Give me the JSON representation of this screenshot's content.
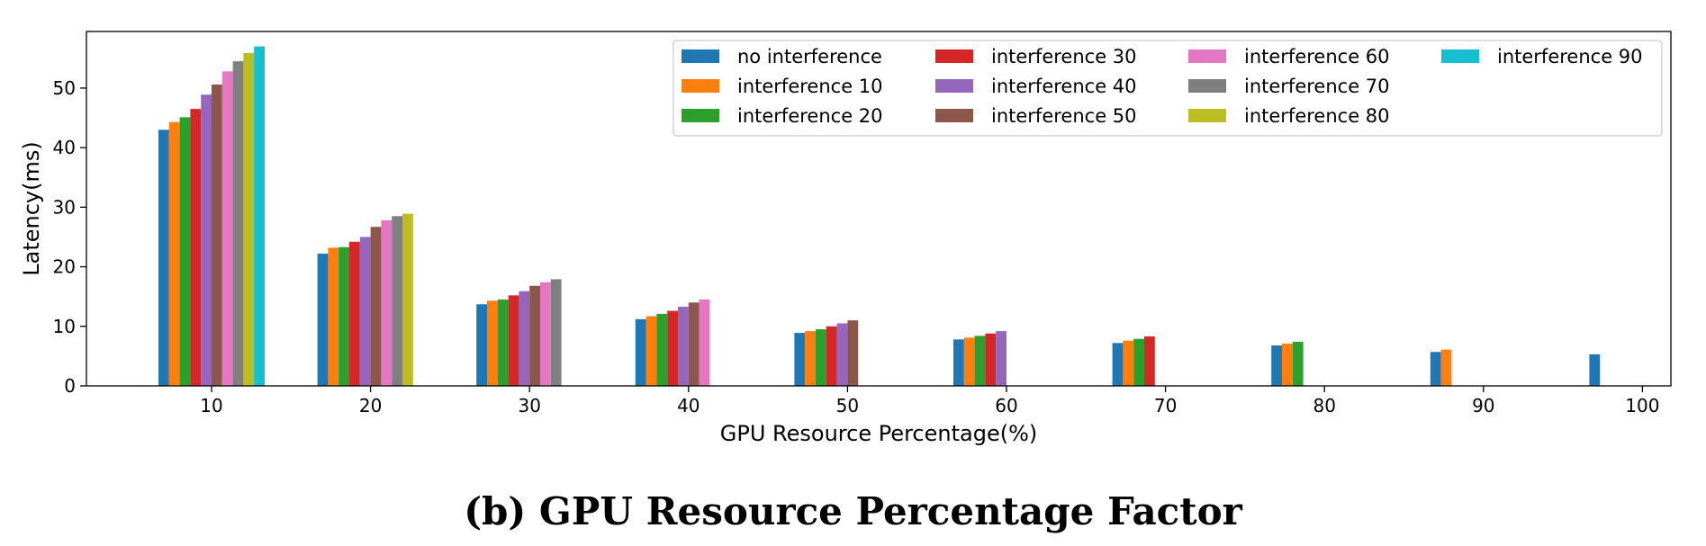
{
  "caption": "(b) GPU Resource Percentage Factor",
  "chart_data": {
    "type": "bar",
    "xlabel": "GPU Resource Percentage(%)",
    "ylabel": "Latency(ms)",
    "ylim": [
      0,
      59.5
    ],
    "yticks": [
      0,
      10,
      20,
      30,
      40,
      50
    ],
    "categories": [
      "10",
      "20",
      "30",
      "40",
      "50",
      "60",
      "70",
      "80",
      "90",
      "100"
    ],
    "legend_position": "top-right",
    "grid": false,
    "series": [
      {
        "name": "no interference",
        "color": "#1f77b4",
        "values": [
          43.0,
          22.2,
          13.7,
          11.2,
          8.9,
          7.8,
          7.2,
          6.8,
          5.7,
          5.3
        ]
      },
      {
        "name": "interference 10",
        "color": "#ff7f0e",
        "values": [
          44.3,
          23.2,
          14.3,
          11.7,
          9.2,
          8.1,
          7.6,
          7.1,
          6.1,
          null
        ]
      },
      {
        "name": "interference 20",
        "color": "#2ca02c",
        "values": [
          45.1,
          23.3,
          14.5,
          12.1,
          9.5,
          8.4,
          7.9,
          7.4,
          null,
          null
        ]
      },
      {
        "name": "interference 30",
        "color": "#d62728",
        "values": [
          46.5,
          24.2,
          15.2,
          12.6,
          10.0,
          8.8,
          8.3,
          null,
          null,
          null
        ]
      },
      {
        "name": "interference 40",
        "color": "#9467bd",
        "values": [
          48.9,
          25.0,
          15.9,
          13.3,
          10.5,
          9.2,
          null,
          null,
          null,
          null
        ]
      },
      {
        "name": "interference 50",
        "color": "#8c564b",
        "values": [
          50.6,
          26.7,
          16.8,
          14.0,
          11.0,
          null,
          null,
          null,
          null,
          null
        ]
      },
      {
        "name": "interference 60",
        "color": "#e377c2",
        "values": [
          52.8,
          27.8,
          17.4,
          14.5,
          null,
          null,
          null,
          null,
          null,
          null
        ]
      },
      {
        "name": "interference 70",
        "color": "#7f7f7f",
        "values": [
          54.5,
          28.5,
          17.9,
          null,
          null,
          null,
          null,
          null,
          null,
          null
        ]
      },
      {
        "name": "interference 80",
        "color": "#bcbd22",
        "values": [
          55.9,
          28.9,
          null,
          null,
          null,
          null,
          null,
          null,
          null,
          null
        ]
      },
      {
        "name": "interference 90",
        "color": "#17becf",
        "values": [
          57.0,
          null,
          null,
          null,
          null,
          null,
          null,
          null,
          null,
          null
        ]
      }
    ]
  }
}
